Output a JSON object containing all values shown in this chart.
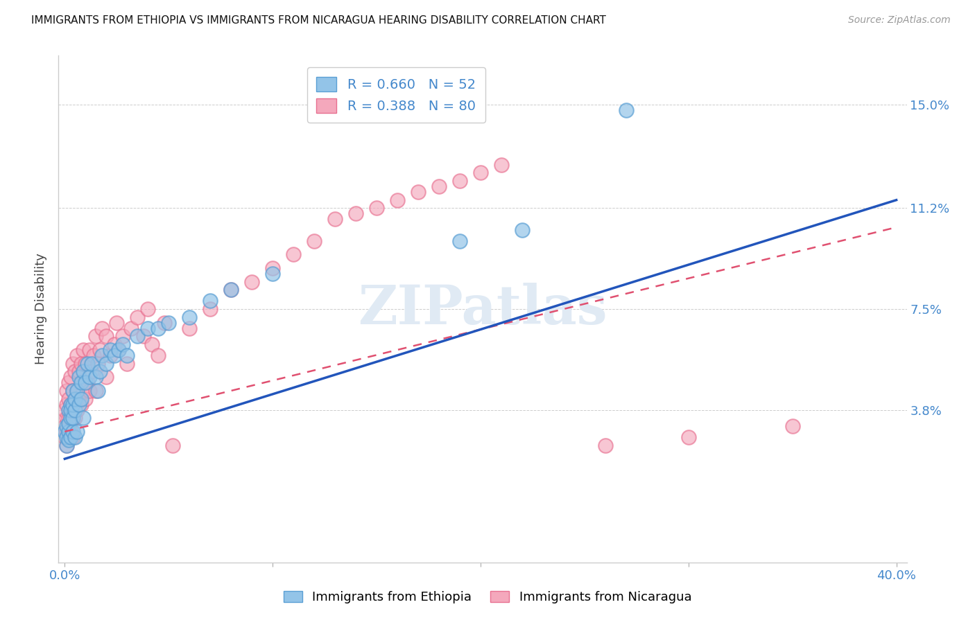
{
  "title": "IMMIGRANTS FROM ETHIOPIA VS IMMIGRANTS FROM NICARAGUA HEARING DISABILITY CORRELATION CHART",
  "source": "Source: ZipAtlas.com",
  "ylabel": "Hearing Disability",
  "ytick_labels": [
    "15.0%",
    "11.2%",
    "7.5%",
    "3.8%"
  ],
  "ytick_values": [
    0.15,
    0.112,
    0.075,
    0.038
  ],
  "xlim": [
    0.0,
    0.4
  ],
  "ylim": [
    -0.018,
    0.168
  ],
  "ethiopia_R": 0.66,
  "ethiopia_N": 52,
  "nicaragua_R": 0.388,
  "nicaragua_N": 80,
  "ethiopia_color": "#93c4e8",
  "nicaragua_color": "#f4a8bc",
  "ethiopia_edge_color": "#5a9fd4",
  "nicaragua_edge_color": "#e87090",
  "ethiopia_line_color": "#2255bb",
  "nicaragua_line_color": "#e05070",
  "background_color": "#ffffff",
  "watermark_text": "ZIPatlas",
  "ethiopia_points_x": [
    0.0,
    0.001,
    0.001,
    0.001,
    0.002,
    0.002,
    0.002,
    0.002,
    0.003,
    0.003,
    0.003,
    0.003,
    0.004,
    0.004,
    0.004,
    0.004,
    0.005,
    0.005,
    0.005,
    0.006,
    0.006,
    0.007,
    0.007,
    0.008,
    0.008,
    0.009,
    0.009,
    0.01,
    0.011,
    0.012,
    0.013,
    0.015,
    0.016,
    0.017,
    0.018,
    0.02,
    0.022,
    0.024,
    0.026,
    0.028,
    0.03,
    0.035,
    0.04,
    0.045,
    0.05,
    0.06,
    0.07,
    0.08,
    0.1,
    0.19,
    0.22,
    0.27
  ],
  "ethiopia_points_y": [
    0.03,
    0.025,
    0.028,
    0.032,
    0.03,
    0.033,
    0.027,
    0.038,
    0.028,
    0.035,
    0.04,
    0.038,
    0.03,
    0.035,
    0.04,
    0.045,
    0.038,
    0.042,
    0.028,
    0.03,
    0.045,
    0.04,
    0.05,
    0.042,
    0.048,
    0.035,
    0.052,
    0.048,
    0.055,
    0.05,
    0.055,
    0.05,
    0.045,
    0.052,
    0.058,
    0.055,
    0.06,
    0.058,
    0.06,
    0.062,
    0.058,
    0.065,
    0.068,
    0.068,
    0.07,
    0.072,
    0.078,
    0.082,
    0.088,
    0.1,
    0.104,
    0.148
  ],
  "nicaragua_points_x": [
    0.0,
    0.0,
    0.0,
    0.001,
    0.001,
    0.001,
    0.001,
    0.001,
    0.002,
    0.002,
    0.002,
    0.002,
    0.002,
    0.003,
    0.003,
    0.003,
    0.003,
    0.004,
    0.004,
    0.004,
    0.004,
    0.005,
    0.005,
    0.005,
    0.006,
    0.006,
    0.006,
    0.007,
    0.007,
    0.008,
    0.008,
    0.009,
    0.009,
    0.01,
    0.01,
    0.011,
    0.012,
    0.012,
    0.013,
    0.014,
    0.015,
    0.015,
    0.016,
    0.017,
    0.018,
    0.02,
    0.02,
    0.022,
    0.024,
    0.025,
    0.026,
    0.028,
    0.03,
    0.032,
    0.035,
    0.038,
    0.04,
    0.042,
    0.045,
    0.048,
    0.052,
    0.06,
    0.07,
    0.08,
    0.09,
    0.1,
    0.11,
    0.12,
    0.13,
    0.14,
    0.15,
    0.16,
    0.17,
    0.18,
    0.19,
    0.2,
    0.21,
    0.26,
    0.3,
    0.35
  ],
  "nicaragua_points_y": [
    0.028,
    0.032,
    0.038,
    0.025,
    0.03,
    0.035,
    0.04,
    0.045,
    0.028,
    0.032,
    0.035,
    0.042,
    0.048,
    0.03,
    0.035,
    0.04,
    0.05,
    0.028,
    0.035,
    0.045,
    0.055,
    0.035,
    0.042,
    0.052,
    0.038,
    0.045,
    0.058,
    0.042,
    0.052,
    0.04,
    0.055,
    0.045,
    0.06,
    0.042,
    0.055,
    0.048,
    0.045,
    0.06,
    0.052,
    0.058,
    0.045,
    0.065,
    0.055,
    0.06,
    0.068,
    0.05,
    0.065,
    0.058,
    0.062,
    0.07,
    0.06,
    0.065,
    0.055,
    0.068,
    0.072,
    0.065,
    0.075,
    0.062,
    0.058,
    0.07,
    0.025,
    0.068,
    0.075,
    0.082,
    0.085,
    0.09,
    0.095,
    0.1,
    0.108,
    0.11,
    0.112,
    0.115,
    0.118,
    0.12,
    0.122,
    0.125,
    0.128,
    0.025,
    0.028,
    0.032
  ],
  "eth_line_x0": 0.0,
  "eth_line_x1": 0.4,
  "eth_line_y0": 0.02,
  "eth_line_y1": 0.115,
  "nic_line_x0": 0.0,
  "nic_line_x1": 0.4,
  "nic_line_y0": 0.03,
  "nic_line_y1": 0.105
}
